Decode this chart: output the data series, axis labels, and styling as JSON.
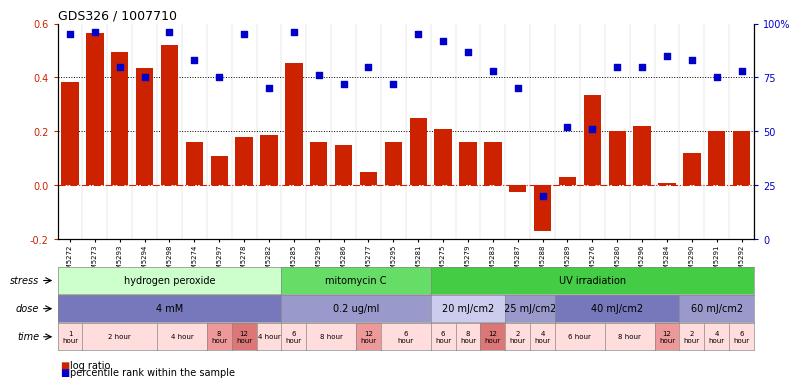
{
  "title": "GDS326 / 1007710",
  "gsm_labels": [
    "GSM5272",
    "GSM5273",
    "GSM5293",
    "GSM5294",
    "GSM5298",
    "GSM5274",
    "GSM5297",
    "GSM5278",
    "GSM5282",
    "GSM5285",
    "GSM5299",
    "GSM5286",
    "GSM5277",
    "GSM5295",
    "GSM5281",
    "GSM5275",
    "GSM5279",
    "GSM5283",
    "GSM5287",
    "GSM5288",
    "GSM5289",
    "GSM5276",
    "GSM5280",
    "GSM5296",
    "GSM5284",
    "GSM5290",
    "GSM5291",
    "GSM5292"
  ],
  "log_ratios": [
    0.385,
    0.565,
    0.495,
    0.435,
    0.52,
    0.16,
    0.11,
    0.18,
    0.185,
    0.455,
    0.16,
    0.15,
    0.05,
    0.16,
    0.25,
    0.21,
    0.16,
    0.16,
    -0.025,
    -0.17,
    0.03,
    0.335,
    0.2,
    0.22,
    0.01,
    0.12,
    0.2,
    0.2
  ],
  "percentile_ranks": [
    95,
    96,
    80,
    75,
    96,
    83,
    75,
    95,
    70,
    96,
    76,
    72,
    80,
    72,
    95,
    92,
    87,
    78,
    70,
    20,
    52,
    51,
    80,
    80,
    85,
    83,
    75,
    78
  ],
  "bar_color": "#CC2200",
  "dot_color": "#0000CC",
  "bg_color": "#FFFFFF",
  "left_yticks": [
    -0.2,
    0.0,
    0.2,
    0.4,
    0.6
  ],
  "right_yticks": [
    0,
    25,
    50,
    75,
    100
  ],
  "right_ylabels": [
    "0",
    "25",
    "50",
    "75",
    "100%"
  ],
  "hline_color": "#CC2200",
  "dotted_lines": [
    0.2,
    0.4
  ],
  "stress_groups": [
    {
      "label": "hydrogen peroxide",
      "start": 0,
      "end": 9,
      "color": "#CCFFCC"
    },
    {
      "label": "mitomycin C",
      "start": 9,
      "end": 15,
      "color": "#66DD66"
    },
    {
      "label": "UV irradiation",
      "start": 15,
      "end": 28,
      "color": "#44CC44"
    }
  ],
  "dose_groups": [
    {
      "label": "4 mM",
      "start": 0,
      "end": 9,
      "color": "#7777BB"
    },
    {
      "label": "0.2 ug/ml",
      "start": 9,
      "end": 15,
      "color": "#9999CC"
    },
    {
      "label": "20 mJ/cm2",
      "start": 15,
      "end": 18,
      "color": "#CCCCEE"
    },
    {
      "label": "25 mJ/cm2",
      "start": 18,
      "end": 20,
      "color": "#9999CC"
    },
    {
      "label": "40 mJ/cm2",
      "start": 20,
      "end": 25,
      "color": "#7777BB"
    },
    {
      "label": "60 mJ/cm2",
      "start": 25,
      "end": 28,
      "color": "#9999CC"
    }
  ],
  "time_groups": [
    {
      "label": "1\nhour",
      "start": 0,
      "end": 1,
      "color": "#FFDDDD"
    },
    {
      "label": "2 hour",
      "start": 1,
      "end": 4,
      "color": "#FFDDDD"
    },
    {
      "label": "4 hour",
      "start": 4,
      "end": 6,
      "color": "#FFDDDD"
    },
    {
      "label": "8\nhour",
      "start": 6,
      "end": 7,
      "color": "#EE9999"
    },
    {
      "label": "12\nhour",
      "start": 7,
      "end": 8,
      "color": "#DD7777"
    },
    {
      "label": "4 hour",
      "start": 8,
      "end": 9,
      "color": "#FFDDDD"
    },
    {
      "label": "6\nhour",
      "start": 9,
      "end": 10,
      "color": "#FFDDDD"
    },
    {
      "label": "8 hour",
      "start": 10,
      "end": 12,
      "color": "#FFDDDD"
    },
    {
      "label": "12\nhour",
      "start": 12,
      "end": 13,
      "color": "#EE9999"
    },
    {
      "label": "6\nhour",
      "start": 13,
      "end": 15,
      "color": "#FFDDDD"
    },
    {
      "label": "6\nhour",
      "start": 15,
      "end": 16,
      "color": "#FFDDDD"
    },
    {
      "label": "8\nhour",
      "start": 16,
      "end": 17,
      "color": "#FFDDDD"
    },
    {
      "label": "12\nhour",
      "start": 17,
      "end": 18,
      "color": "#DD7777"
    },
    {
      "label": "2\nhour",
      "start": 18,
      "end": 19,
      "color": "#FFDDDD"
    },
    {
      "label": "4\nhour",
      "start": 19,
      "end": 20,
      "color": "#FFDDDD"
    },
    {
      "label": "6 hour",
      "start": 20,
      "end": 22,
      "color": "#FFDDDD"
    },
    {
      "label": "8 hour",
      "start": 22,
      "end": 24,
      "color": "#FFDDDD"
    },
    {
      "label": "12\nhour",
      "start": 24,
      "end": 25,
      "color": "#EE9999"
    },
    {
      "label": "2\nhour",
      "start": 25,
      "end": 26,
      "color": "#FFDDDD"
    },
    {
      "label": "4\nhour",
      "start": 26,
      "end": 27,
      "color": "#FFDDDD"
    },
    {
      "label": "6\nhour",
      "start": 27,
      "end": 28,
      "color": "#FFDDDD"
    }
  ],
  "legend_items": [
    {
      "label": "log ratio",
      "color": "#CC2200"
    },
    {
      "label": "percentile rank within the sample",
      "color": "#0000CC"
    }
  ]
}
